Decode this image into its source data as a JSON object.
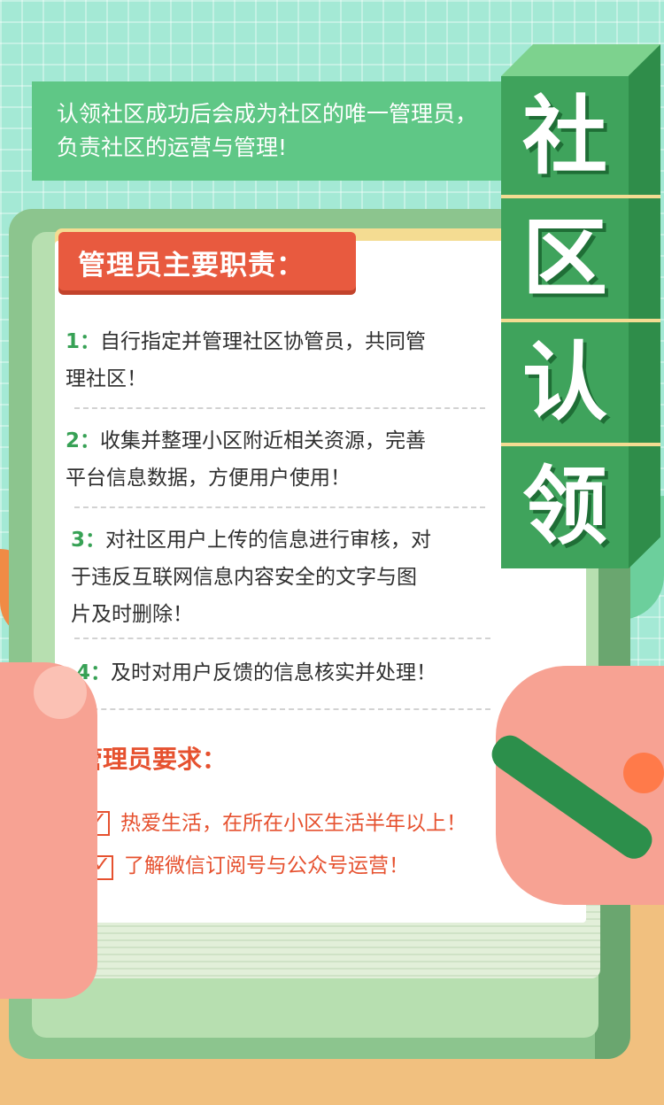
{
  "colors": {
    "accent_green": "#3fa35c",
    "accent_red": "#e6512f",
    "background_mint": "#a4e9d5",
    "banner_green": "#5fc786"
  },
  "intro": {
    "line1": "认领社区成功后会成为社区的唯一管理员，",
    "line2": "负责社区的运营与管理!"
  },
  "title_chars": [
    "社",
    "区",
    "认",
    "领"
  ],
  "duties": {
    "heading": "管理员主要职责：",
    "items": [
      {
        "num": "1：",
        "line1": "自行指定并管理社区协管员，共同管",
        "line2": "理社区！"
      },
      {
        "num": "2：",
        "line1": "收集并整理小区附近相关资源，完善",
        "line2": "平台信息数据，方便用户使用！"
      },
      {
        "num": "3：",
        "line1": "对社区用户上传的信息进行审核，对",
        "line2": "于违反互联网信息内容安全的文字与图",
        "line3": "片及时删除！"
      },
      {
        "num": "4：",
        "line1": "及时对用户反馈的信息核实并处理！"
      }
    ]
  },
  "requirements": {
    "heading": "管理员要求：",
    "items": [
      "热爱生活，在所在小区生活半年以上！",
      "了解微信订阅号与公众号运营！"
    ]
  }
}
